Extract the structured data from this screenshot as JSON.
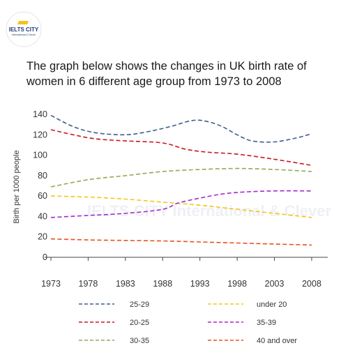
{
  "brand": {
    "name": "IELTS CITY",
    "tagline": "International & Clever",
    "accent": "#f0c419",
    "primary": "#1f3d7a"
  },
  "heading": {
    "line1": "The graph below shows the changes in UK birth rate of",
    "line2": "women in 6 different age group from 1973 to 2008"
  },
  "chart_data": {
    "type": "line",
    "x": [
      1973,
      1978,
      1983,
      1988,
      1993,
      1998,
      2003,
      2008
    ],
    "xticks": [
      "1973",
      "1978",
      "1983",
      "1988",
      "1993",
      "1998",
      "2003",
      "2008"
    ],
    "yticks": [
      "0",
      "20",
      "40",
      "60",
      "80",
      "100",
      "120",
      "140"
    ],
    "ylim": [
      0,
      140
    ],
    "xlim": [
      1973,
      2008
    ],
    "ylabel": "Birth per 1000 people",
    "line_style": "dashed",
    "series": [
      {
        "name": "25-29",
        "color": "#3d5f8c",
        "points": [
          [
            1973,
            139
          ],
          [
            1976,
            128
          ],
          [
            1979,
            122
          ],
          [
            1983,
            120
          ],
          [
            1986,
            123
          ],
          [
            1989,
            128
          ],
          [
            1992,
            134
          ],
          [
            1994,
            133
          ],
          [
            1996,
            128
          ],
          [
            1998,
            120
          ],
          [
            2000,
            114
          ],
          [
            2003,
            113
          ],
          [
            2006,
            117
          ],
          [
            2008,
            121
          ]
        ]
      },
      {
        "name": "20-25",
        "color": "#c8181f",
        "points": [
          [
            1973,
            125
          ],
          [
            1976,
            120
          ],
          [
            1979,
            116
          ],
          [
            1983,
            114
          ],
          [
            1988,
            112
          ],
          [
            1991,
            106
          ],
          [
            1994,
            103
          ],
          [
            1998,
            101
          ],
          [
            2003,
            96
          ],
          [
            2008,
            90
          ]
        ]
      },
      {
        "name": "30-35",
        "color": "#93a955",
        "points": [
          [
            1973,
            69
          ],
          [
            1978,
            76
          ],
          [
            1983,
            80
          ],
          [
            1988,
            84
          ],
          [
            1993,
            86
          ],
          [
            1998,
            87
          ],
          [
            2003,
            86
          ],
          [
            2008,
            84
          ]
        ]
      },
      {
        "name": "under 20",
        "color": "#f2c811",
        "points": [
          [
            1973,
            60
          ],
          [
            1978,
            59
          ],
          [
            1983,
            57
          ],
          [
            1988,
            54
          ],
          [
            1993,
            51
          ],
          [
            1998,
            47
          ],
          [
            2003,
            43
          ],
          [
            2008,
            39
          ]
        ]
      },
      {
        "name": "35-39",
        "color": "#a629cc",
        "points": [
          [
            1973,
            39
          ],
          [
            1978,
            41
          ],
          [
            1983,
            43
          ],
          [
            1988,
            47
          ],
          [
            1990,
            53
          ],
          [
            1993,
            58
          ],
          [
            1996,
            62
          ],
          [
            1999,
            64
          ],
          [
            2003,
            65
          ],
          [
            2008,
            65
          ]
        ]
      },
      {
        "name": "40 and over",
        "color": "#e8521c",
        "points": [
          [
            1973,
            18
          ],
          [
            1978,
            17
          ],
          [
            1983,
            16.5
          ],
          [
            1988,
            16
          ],
          [
            1993,
            15
          ],
          [
            1998,
            14
          ],
          [
            2003,
            13
          ],
          [
            2008,
            12
          ]
        ]
      }
    ],
    "legend_columns": [
      [
        "25-29",
        "20-25",
        "30-35"
      ],
      [
        "under 20",
        "35-39",
        "40 and over"
      ]
    ],
    "watermark": "IELTS CITY International & Clever"
  }
}
